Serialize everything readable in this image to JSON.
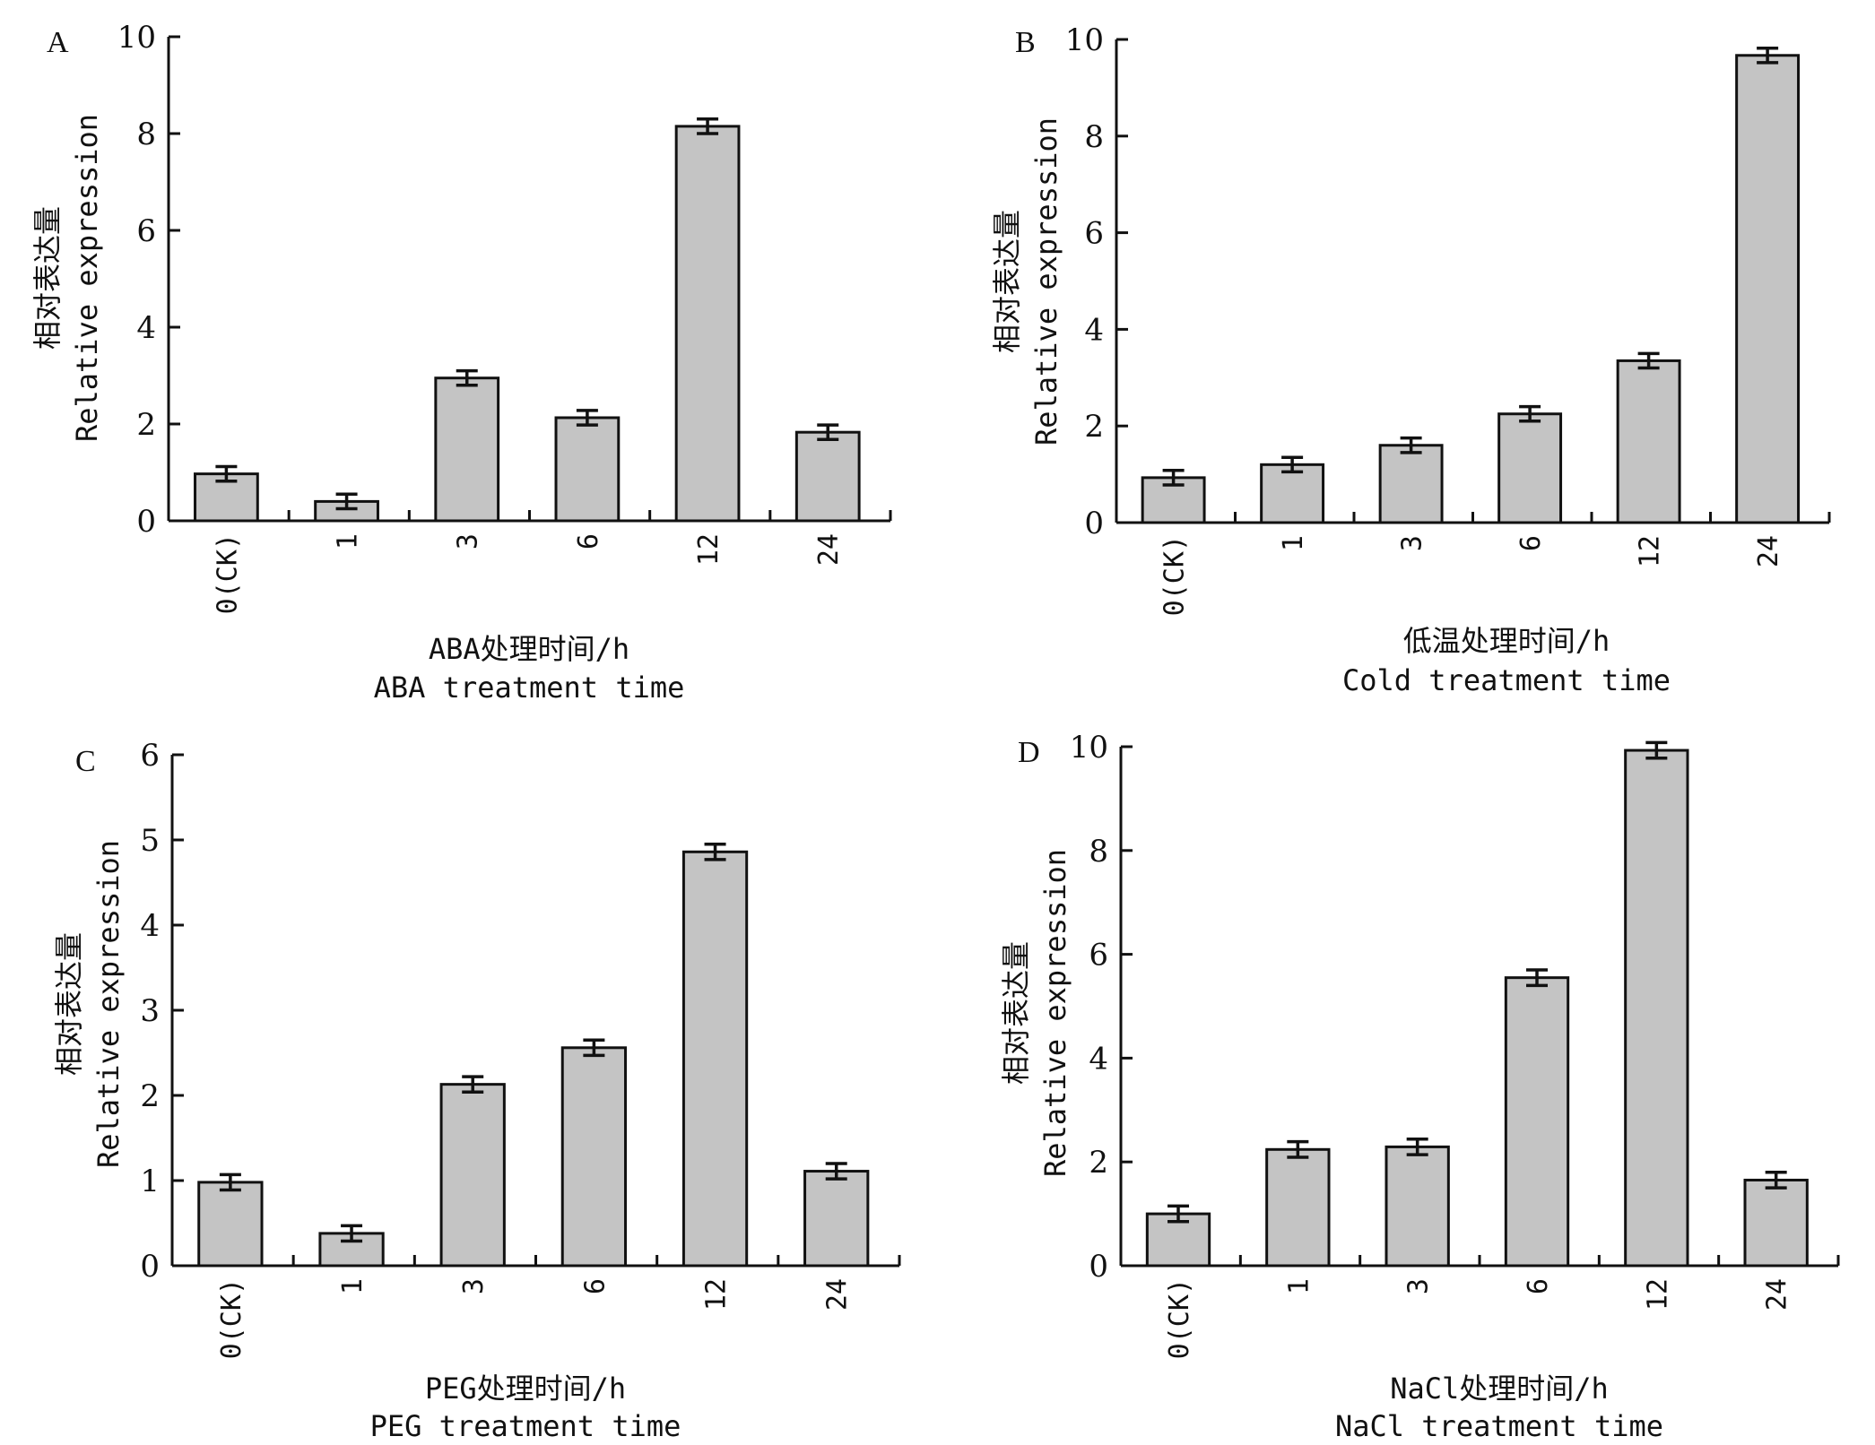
{
  "figure": {
    "ylabel_cn": "相对表达量",
    "ylabel_en": "Relative expression",
    "categories": [
      "0(CK)",
      "1",
      "3",
      "6",
      "12",
      "24"
    ],
    "bar_color": "#c4c4c4"
  },
  "chart_data": [
    {
      "type": "bar",
      "panel": "A",
      "title": "",
      "xlabel_cn": "ABA处理时间/h",
      "xlabel_en": "ABA treatment time",
      "ylabel": "相对表达量 Relative expression",
      "categories": [
        "0(CK)",
        "1",
        "3",
        "6",
        "12",
        "24"
      ],
      "values": [
        0.97,
        0.4,
        2.95,
        2.13,
        8.15,
        1.83
      ],
      "errors": [
        0.15,
        0.15,
        0.15,
        0.15,
        0.15,
        0.15
      ],
      "ylim": [
        0,
        10
      ],
      "yticks": [
        0,
        2,
        4,
        6,
        8,
        10
      ],
      "grid": false
    },
    {
      "type": "bar",
      "panel": "B",
      "title": "",
      "xlabel_cn": "低温处理时间/h",
      "xlabel_en": "Cold treatment time",
      "ylabel": "相对表达量 Relative expression",
      "categories": [
        "0(CK)",
        "1",
        "3",
        "6",
        "12",
        "24"
      ],
      "values": [
        0.93,
        1.2,
        1.6,
        2.25,
        3.35,
        9.67
      ],
      "errors": [
        0.15,
        0.15,
        0.15,
        0.15,
        0.15,
        0.15
      ],
      "ylim": [
        0,
        10
      ],
      "yticks": [
        0,
        2,
        4,
        6,
        8,
        10
      ],
      "grid": false
    },
    {
      "type": "bar",
      "panel": "C",
      "title": "",
      "xlabel_cn": "PEG处理时间/h",
      "xlabel_en": "PEG treatment time",
      "ylabel": "相对表达量 Relative expression",
      "categories": [
        "0(CK)",
        "1",
        "3",
        "6",
        "12",
        "24"
      ],
      "values": [
        0.98,
        0.38,
        2.13,
        2.56,
        4.86,
        1.11
      ],
      "errors": [
        0.09,
        0.09,
        0.09,
        0.09,
        0.09,
        0.09
      ],
      "ylim": [
        0,
        6
      ],
      "yticks": [
        0,
        1,
        2,
        3,
        4,
        5,
        6
      ],
      "grid": false
    },
    {
      "type": "bar",
      "panel": "D",
      "title": "",
      "xlabel_cn": "NaCl处理时间/h",
      "xlabel_en": "NaCl treatment time",
      "ylabel": "相对表达量 Relative expression",
      "categories": [
        "0(CK)",
        "1",
        "3",
        "6",
        "12",
        "24"
      ],
      "values": [
        1.0,
        2.24,
        2.29,
        5.55,
        9.93,
        1.65
      ],
      "errors": [
        0.15,
        0.15,
        0.15,
        0.15,
        0.15,
        0.15
      ],
      "ylim": [
        0,
        10
      ],
      "yticks": [
        0,
        2,
        4,
        6,
        8,
        10
      ],
      "grid": false
    }
  ]
}
